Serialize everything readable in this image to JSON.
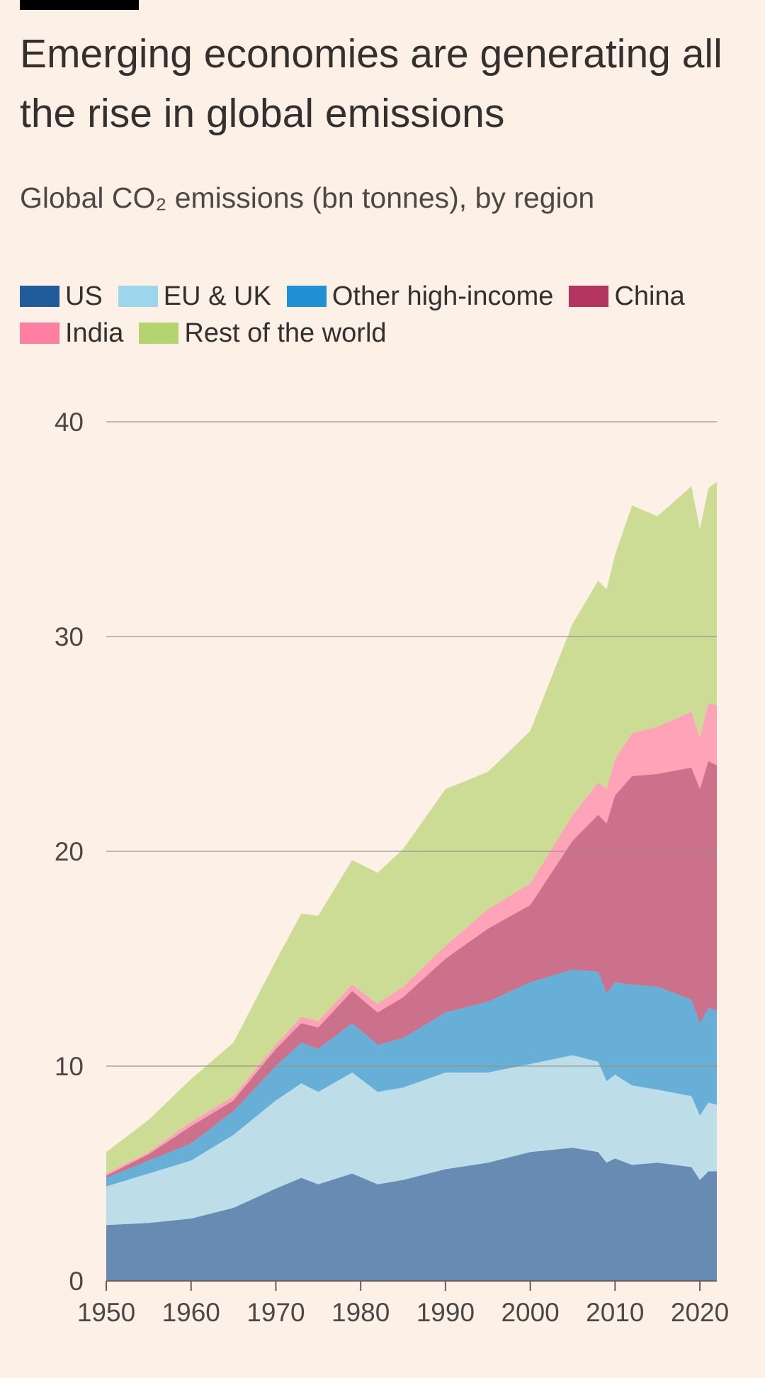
{
  "header": {
    "title": "Emerging economies are generating all the rise in global emissions",
    "subtitle": "Global CO₂ emissions (bn tonnes), by region"
  },
  "legend": [
    {
      "label": "US",
      "color": "#1f5c99"
    },
    {
      "label": "EU & UK",
      "color": "#9dd6ea"
    },
    {
      "label": "Other high-income",
      "color": "#2091d2"
    },
    {
      "label": "China",
      "color": "#b33560"
    },
    {
      "label": "India",
      "color": "#ff7fa3"
    },
    {
      "label": "Rest of the world",
      "color": "#b5d36e"
    }
  ],
  "chart_data": {
    "type": "area",
    "stacked": true,
    "title": "Emerging economies are generating all the rise in global emissions",
    "subtitle": "Global CO₂ emissions (bn tonnes), by region",
    "xlim": [
      1950,
      2022
    ],
    "ylim": [
      0,
      40
    ],
    "x_ticks": [
      1950,
      1960,
      1970,
      1980,
      1990,
      2000,
      2010,
      2020
    ],
    "y_ticks": [
      0,
      10,
      20,
      30,
      40
    ],
    "grid": true,
    "legend_position": "top",
    "x": [
      1950,
      1955,
      1960,
      1965,
      1970,
      1973,
      1975,
      1979,
      1982,
      1985,
      1990,
      1995,
      2000,
      2005,
      2008,
      2009,
      2010,
      2012,
      2015,
      2019,
      2020,
      2021,
      2022
    ],
    "series": [
      {
        "name": "US",
        "color": "#1f5c99",
        "values": [
          2.6,
          2.7,
          2.9,
          3.4,
          4.3,
          4.8,
          4.5,
          5.0,
          4.5,
          4.7,
          5.2,
          5.5,
          6.0,
          6.2,
          6.0,
          5.5,
          5.7,
          5.4,
          5.5,
          5.3,
          4.7,
          5.1,
          5.1
        ]
      },
      {
        "name": "EU & UK",
        "color": "#9dd6ea",
        "values": [
          1.8,
          2.3,
          2.7,
          3.4,
          4.1,
          4.4,
          4.3,
          4.7,
          4.3,
          4.3,
          4.5,
          4.2,
          4.1,
          4.3,
          4.2,
          3.8,
          3.9,
          3.7,
          3.4,
          3.3,
          3.0,
          3.2,
          3.1
        ]
      },
      {
        "name": "Other high-income",
        "color": "#2091d2",
        "values": [
          0.4,
          0.6,
          0.8,
          1.1,
          1.6,
          1.9,
          2.0,
          2.3,
          2.2,
          2.3,
          2.8,
          3.3,
          3.8,
          4.0,
          4.2,
          4.1,
          4.3,
          4.7,
          4.8,
          4.5,
          4.3,
          4.4,
          4.4
        ]
      },
      {
        "name": "China",
        "color": "#b33560",
        "values": [
          0.1,
          0.3,
          0.8,
          0.5,
          0.8,
          0.9,
          1.0,
          1.5,
          1.5,
          1.9,
          2.5,
          3.4,
          3.6,
          6.0,
          7.3,
          7.9,
          8.7,
          9.7,
          9.9,
          10.8,
          10.9,
          11.5,
          11.4
        ]
      },
      {
        "name": "India",
        "color": "#ff7fa3",
        "values": [
          0.1,
          0.1,
          0.2,
          0.2,
          0.2,
          0.3,
          0.3,
          0.3,
          0.4,
          0.5,
          0.6,
          0.9,
          1.0,
          1.2,
          1.5,
          1.6,
          1.7,
          2.0,
          2.2,
          2.6,
          2.4,
          2.7,
          2.8
        ]
      },
      {
        "name": "Rest of the world",
        "color": "#b5d36e",
        "values": [
          1.0,
          1.5,
          2.0,
          2.5,
          3.9,
          4.8,
          4.9,
          5.8,
          6.1,
          6.4,
          7.3,
          6.4,
          7.1,
          8.9,
          9.4,
          9.3,
          9.5,
          10.6,
          9.8,
          10.5,
          9.7,
          10.0,
          10.4
        ]
      }
    ]
  }
}
